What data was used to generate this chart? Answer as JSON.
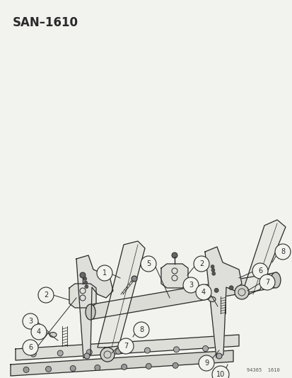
{
  "title": "SAN–1610",
  "footer": "94365  1610",
  "bg_color": "#f2f2ee",
  "line_color": "#2a2a2a",
  "figsize": [
    4.14,
    5.33
  ],
  "dpi": 100
}
